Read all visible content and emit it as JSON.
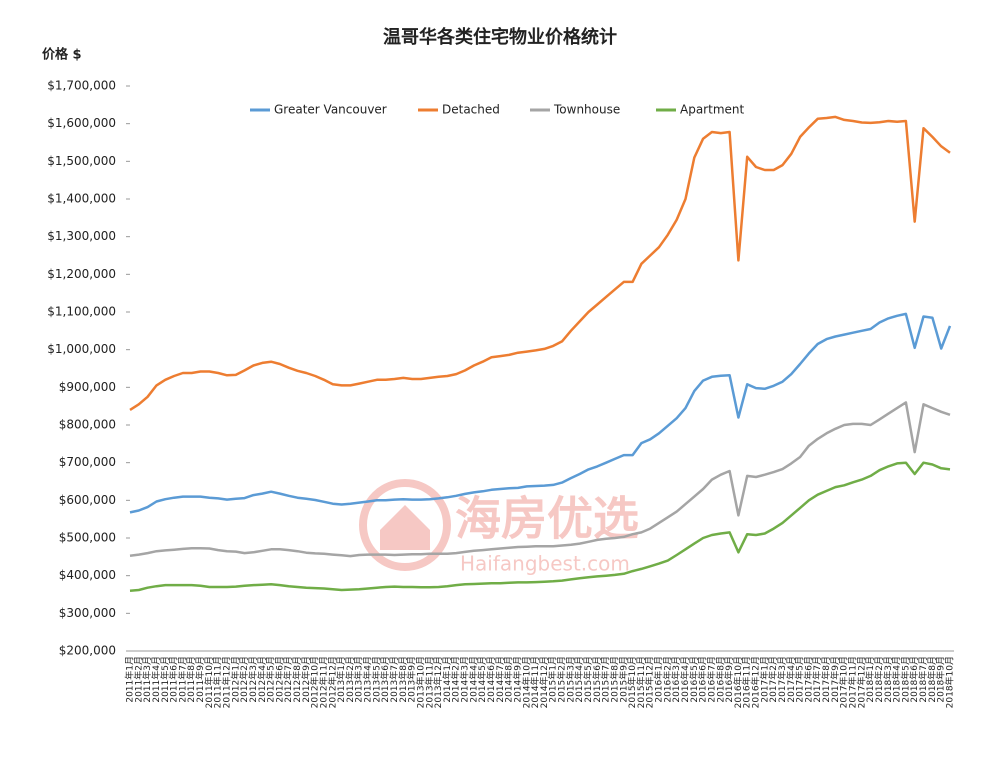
{
  "chart_data": {
    "type": "line",
    "title": "温哥华各类住宅物业价格统计",
    "ylabel": "价格 $",
    "watermark": {
      "brand": "海房优选",
      "site": "Haifangbest.com"
    },
    "categories": [
      "2011年1月",
      "2011年2月",
      "2011年3月",
      "2011年4月",
      "2011年5月",
      "2011年6月",
      "2011年7月",
      "2011年8月",
      "2011年9月",
      "2011年10月",
      "2011年11月",
      "2011年12月",
      "2012年1月",
      "2012年2月",
      "2012年3月",
      "2012年4月",
      "2012年5月",
      "2012年6月",
      "2012年7月",
      "2012年8月",
      "2012年9月",
      "2012年10月",
      "2012年11月",
      "2012年12月",
      "2013年1月",
      "2013年2月",
      "2013年3月",
      "2013年4月",
      "2013年5月",
      "2013年6月",
      "2013年7月",
      "2013年8月",
      "2013年9月",
      "2013年10月",
      "2013年11月",
      "2013年12月",
      "2014年1月",
      "2014年2月",
      "2014年3月",
      "2014年4月",
      "2014年5月",
      "2014年6月",
      "2014年7月",
      "2014年8月",
      "2014年9月",
      "2014年10月",
      "2014年11月",
      "2014年12月",
      "2015年1月",
      "2015年2月",
      "2015年3月",
      "2015年4月",
      "2015年5月",
      "2015年6月",
      "2015年7月",
      "2015年8月",
      "2015年9月",
      "2015年10月",
      "2015年11月",
      "2015年12月",
      "2016年1月",
      "2016年2月",
      "2016年3月",
      "2016年4月",
      "2016年5月",
      "2016年6月",
      "2016年7月",
      "2016年8月",
      "2016年9月",
      "2016年10月",
      "2016年11月",
      "2016年12月",
      "2017年1月",
      "2017年2月",
      "2017年3月",
      "2017年4月",
      "2017年5月",
      "2017年6月",
      "2017年7月",
      "2017年8月",
      "2017年9月",
      "2017年10月",
      "2017年11月",
      "2017年12月",
      "2018年1月",
      "2018年2月",
      "2018年3月",
      "2018年4月",
      "2018年5月",
      "2018年6月",
      "2018年7月",
      "2018年8月",
      "2018年9月",
      "2018年10月"
    ],
    "series": [
      {
        "name": "Greater Vancouver",
        "color": "#5b9bd5",
        "values": [
          568000,
          573000,
          582000,
          597000,
          603000,
          607000,
          610000,
          610000,
          610000,
          607000,
          605000,
          602000,
          604000,
          606000,
          614000,
          618000,
          623000,
          618000,
          612000,
          607000,
          604000,
          601000,
          596000,
          591000,
          589000,
          591000,
          594000,
          597000,
          600000,
          600000,
          602000,
          603000,
          602000,
          602000,
          603000,
          605000,
          608000,
          612000,
          617000,
          621000,
          624000,
          628000,
          630000,
          632000,
          633000,
          637000,
          638000,
          639000,
          641000,
          647000,
          659000,
          670000,
          682000,
          690000,
          700000,
          710000,
          720000,
          720000,
          752000,
          762000,
          778000,
          798000,
          818000,
          845000,
          890000,
          918000,
          928000,
          931000,
          932000,
          820000,
          908000,
          898000,
          896000,
          904000,
          915000,
          935000,
          962000,
          990000,
          1015000,
          1028000,
          1035000,
          1040000,
          1045000,
          1050000,
          1055000,
          1072000,
          1083000,
          1090000,
          1095000,
          1005000,
          1088000,
          1085000,
          1003000,
          1063000
        ]
      },
      {
        "name": "Detached",
        "color": "#ed7d31",
        "values": [
          840000,
          855000,
          875000,
          905000,
          920000,
          930000,
          938000,
          938000,
          942000,
          942000,
          938000,
          932000,
          933000,
          945000,
          958000,
          965000,
          968000,
          962000,
          952000,
          944000,
          938000,
          930000,
          920000,
          908000,
          905000,
          905000,
          910000,
          915000,
          920000,
          920000,
          922000,
          925000,
          922000,
          922000,
          925000,
          928000,
          930000,
          935000,
          945000,
          958000,
          968000,
          980000,
          983000,
          986000,
          992000,
          995000,
          998000,
          1002000,
          1010000,
          1022000,
          1050000,
          1075000,
          1100000,
          1120000,
          1140000,
          1160000,
          1180000,
          1180000,
          1228000,
          1250000,
          1272000,
          1305000,
          1345000,
          1400000,
          1510000,
          1560000,
          1578000,
          1575000,
          1578000,
          1237000,
          1512000,
          1485000,
          1477000,
          1477000,
          1490000,
          1520000,
          1565000,
          1590000,
          1613000,
          1615000,
          1618000,
          1610000,
          1607000,
          1603000,
          1602000,
          1604000,
          1607000,
          1605000,
          1607000,
          1340000,
          1588000,
          1565000,
          1540000,
          1523000
        ]
      },
      {
        "name": "Townhouse",
        "color": "#a5a5a5",
        "values": [
          453000,
          456000,
          460000,
          465000,
          467000,
          469000,
          471000,
          473000,
          473000,
          472000,
          468000,
          465000,
          464000,
          460000,
          462000,
          466000,
          470000,
          470000,
          468000,
          465000,
          461000,
          459000,
          458000,
          456000,
          454000,
          452000,
          455000,
          456000,
          456000,
          456000,
          455000,
          456000,
          457000,
          457000,
          458000,
          458000,
          458000,
          460000,
          463000,
          466000,
          468000,
          470000,
          472000,
          474000,
          476000,
          477000,
          478000,
          478000,
          478000,
          480000,
          482000,
          485000,
          490000,
          495000,
          498000,
          500000,
          503000,
          510000,
          515000,
          525000,
          540000,
          555000,
          570000,
          590000,
          610000,
          630000,
          655000,
          668000,
          678000,
          560000,
          665000,
          662000,
          668000,
          675000,
          683000,
          698000,
          715000,
          745000,
          763000,
          778000,
          790000,
          800000,
          803000,
          803000,
          800000,
          815000,
          830000,
          845000,
          860000,
          728000,
          855000,
          845000,
          835000,
          827000
        ]
      },
      {
        "name": "Apartment",
        "color": "#70ad47",
        "values": [
          360000,
          362000,
          368000,
          372000,
          375000,
          375000,
          375000,
          375000,
          373000,
          370000,
          370000,
          370000,
          371000,
          373000,
          375000,
          376000,
          377000,
          375000,
          372000,
          370000,
          368000,
          367000,
          366000,
          364000,
          362000,
          363000,
          364000,
          366000,
          368000,
          370000,
          371000,
          370000,
          370000,
          369000,
          369000,
          370000,
          372000,
          375000,
          377000,
          378000,
          379000,
          380000,
          380000,
          381000,
          382000,
          382000,
          383000,
          384000,
          385000,
          387000,
          390000,
          393000,
          396000,
          398000,
          400000,
          402000,
          405000,
          412000,
          418000,
          425000,
          432000,
          440000,
          455000,
          470000,
          485000,
          500000,
          508000,
          512000,
          515000,
          462000,
          510000,
          508000,
          512000,
          525000,
          540000,
          560000,
          580000,
          600000,
          615000,
          625000,
          635000,
          640000,
          648000,
          655000,
          665000,
          680000,
          690000,
          698000,
          700000,
          670000,
          700000,
          695000,
          685000,
          682000
        ]
      }
    ],
    "ylim": [
      200000,
      1700000
    ],
    "yticks": [
      {
        "value": 200000,
        "label": "$200,000"
      },
      {
        "value": 300000,
        "label": "$300,000"
      },
      {
        "value": 400000,
        "label": "$400,000"
      },
      {
        "value": 500000,
        "label": "$500,000"
      },
      {
        "value": 600000,
        "label": "$600,000"
      },
      {
        "value": 700000,
        "label": "$700,000"
      },
      {
        "value": 800000,
        "label": "$800,000"
      },
      {
        "value": 900000,
        "label": "$900,000"
      },
      {
        "value": 1000000,
        "label": "$1,000,000"
      },
      {
        "value": 1100000,
        "label": "$1,100,000"
      },
      {
        "value": 1200000,
        "label": "$1,200,000"
      },
      {
        "value": 1300000,
        "label": "$1,300,000"
      },
      {
        "value": 1400000,
        "label": "$1,400,000"
      },
      {
        "value": 1500000,
        "label": "$1,500,000"
      },
      {
        "value": 1600000,
        "label": "$1,600,000"
      },
      {
        "value": 1700000,
        "label": "$1,700,000"
      }
    ],
    "grid": false,
    "legend": "top"
  }
}
